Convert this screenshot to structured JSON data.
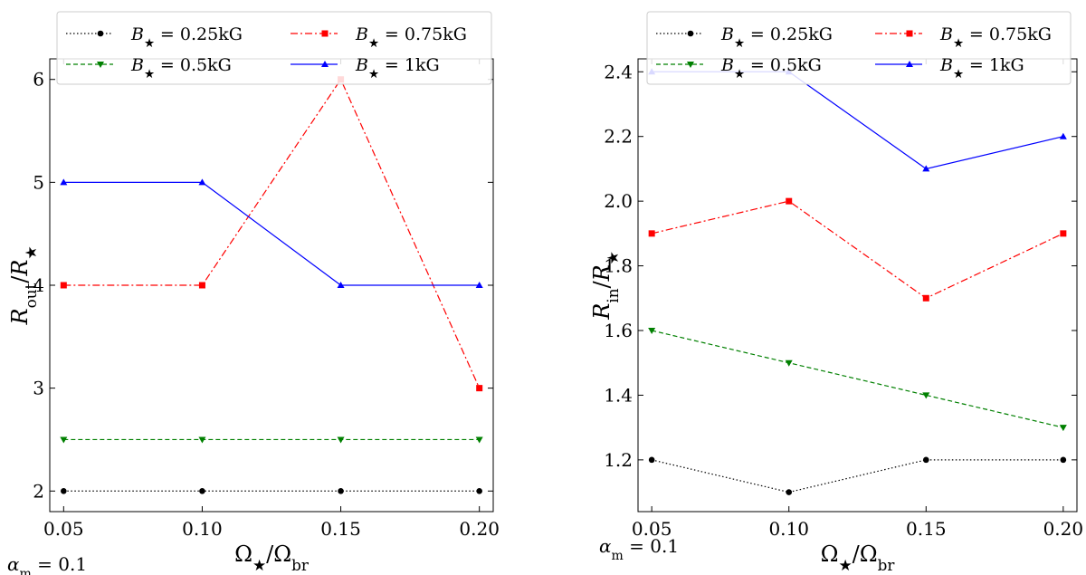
{
  "chart_data": [
    {
      "type": "line",
      "x": [
        0.05,
        0.1,
        0.15,
        0.2
      ],
      "xtick_labels": [
        "0.05",
        "0.10",
        "0.15",
        "0.20"
      ],
      "xlim": [
        0.045,
        0.205
      ],
      "ylim": [
        1.8,
        6.2
      ],
      "yticks": [
        2,
        3,
        4,
        5,
        6
      ],
      "ytick_labels": [
        "2",
        "3",
        "4",
        "5",
        "6"
      ],
      "xlabel": "Ω★/Ωbr",
      "ylabel": "Rout/R★",
      "annotation": "αm = 0.1",
      "legend": {
        "placement": "upper-center",
        "ncols": 2
      },
      "series": [
        {
          "name": "B★ = 0.25kG",
          "values": [
            2,
            2,
            2,
            2
          ],
          "color": "#000000",
          "dash": "dotted",
          "marker": "circle"
        },
        {
          "name": "B★ = 0.5kG",
          "values": [
            2.5,
            2.5,
            2.5,
            2.5
          ],
          "color": "#008000",
          "dash": "dashed",
          "marker": "triangle-down"
        },
        {
          "name": "B★ = 0.75kG",
          "values": [
            4,
            4,
            6,
            3
          ],
          "color": "#ff0000",
          "dash": "dashdot",
          "marker": "square"
        },
        {
          "name": "B★ = 1kG",
          "values": [
            5,
            5,
            4,
            4
          ],
          "color": "#0000ff",
          "dash": "solid",
          "marker": "triangle-up"
        }
      ]
    },
    {
      "type": "line",
      "x": [
        0.05,
        0.1,
        0.15,
        0.2
      ],
      "xtick_labels": [
        "0.05",
        "0.10",
        "0.15",
        "0.20"
      ],
      "xlim": [
        0.045,
        0.205
      ],
      "ylim": [
        1.04,
        2.44
      ],
      "yticks": [
        1.2,
        1.4,
        1.6,
        1.8,
        2.0,
        2.2,
        2.4
      ],
      "ytick_labels": [
        "1.2",
        "1.4",
        "1.6",
        "1.8",
        "2.0",
        "2.2",
        "2.4"
      ],
      "xlabel": "Ω★/Ωbr",
      "ylabel": "Rin/R★",
      "annotation": "αm = 0.1",
      "legend": {
        "placement": "upper-center",
        "ncols": 2
      },
      "series": [
        {
          "name": "B★ = 0.25kG",
          "values": [
            1.2,
            1.1,
            1.2,
            1.2
          ],
          "color": "#000000",
          "dash": "dotted",
          "marker": "circle"
        },
        {
          "name": "B★ = 0.5kG",
          "values": [
            1.6,
            1.5,
            1.4,
            1.3
          ],
          "color": "#008000",
          "dash": "dashed",
          "marker": "triangle-down"
        },
        {
          "name": "B★ = 0.75kG",
          "values": [
            1.9,
            2.0,
            1.7,
            1.9
          ],
          "color": "#ff0000",
          "dash": "dashdot",
          "marker": "square"
        },
        {
          "name": "B★ = 1kG",
          "values": [
            2.4,
            2.4,
            2.1,
            2.2
          ],
          "color": "#0000ff",
          "dash": "solid",
          "marker": "triangle-up"
        }
      ]
    }
  ]
}
